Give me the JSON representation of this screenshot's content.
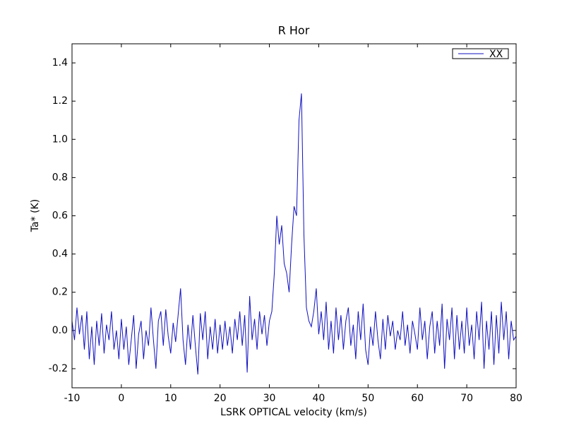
{
  "chart_data": {
    "type": "line",
    "title": "R Hor",
    "xlabel": "LSRK OPTICAL velocity (km/s)",
    "ylabel": "Ta* (K)",
    "x": [
      -10,
      -9.5,
      -9,
      -8.5,
      -8,
      -7.5,
      -7,
      -6.5,
      -6,
      -5.5,
      -5,
      -4.5,
      -4,
      -3.5,
      -3,
      -2.5,
      -2,
      -1.5,
      -1,
      -0.5,
      0,
      0.5,
      1,
      1.5,
      2,
      2.5,
      3,
      3.5,
      4,
      4.5,
      5,
      5.5,
      6,
      6.5,
      7,
      7.5,
      8,
      8.5,
      9,
      9.5,
      10,
      10.5,
      11,
      11.5,
      12,
      12.5,
      13,
      13.5,
      14,
      14.5,
      15,
      15.5,
      16,
      16.5,
      17,
      17.5,
      18,
      18.5,
      19,
      19.5,
      20,
      20.5,
      21,
      21.5,
      22,
      22.5,
      23,
      23.5,
      24,
      24.5,
      25,
      25.5,
      26,
      26.5,
      27,
      27.5,
      28,
      28.5,
      29,
      29.5,
      30,
      30.5,
      31,
      31.5,
      32,
      32.5,
      33,
      33.5,
      34,
      34.5,
      35,
      35.5,
      36,
      36.5,
      37,
      37.5,
      38,
      38.5,
      39,
      39.5,
      40,
      40.5,
      41,
      41.5,
      42,
      42.5,
      43,
      43.5,
      44,
      44.5,
      45,
      45.5,
      46,
      46.5,
      47,
      47.5,
      48,
      48.5,
      49,
      49.5,
      50,
      50.5,
      51,
      51.5,
      52,
      52.5,
      53,
      53.5,
      54,
      54.5,
      55,
      55.5,
      56,
      56.5,
      57,
      57.5,
      58,
      58.5,
      59,
      59.5,
      60,
      60.5,
      61,
      61.5,
      62,
      62.5,
      63,
      63.5,
      64,
      64.5,
      65,
      65.5,
      66,
      66.5,
      67,
      67.5,
      68,
      68.5,
      69,
      69.5,
      70,
      70.5,
      71,
      71.5,
      72,
      72.5,
      73,
      73.5,
      74,
      74.5,
      75,
      75.5,
      76,
      76.5,
      77,
      77.5,
      78,
      78.5,
      79,
      79.5,
      80
    ],
    "series": [
      {
        "name": "XX",
        "color": "#1010c0",
        "values": [
          0.05,
          -0.05,
          0.12,
          -0.02,
          0.08,
          -0.1,
          0.1,
          -0.15,
          0.02,
          -0.18,
          0.05,
          -0.08,
          0.09,
          -0.12,
          0.03,
          -0.05,
          0.1,
          -0.1,
          0.0,
          -0.15,
          0.06,
          -0.1,
          0.02,
          -0.18,
          -0.05,
          0.08,
          -0.2,
          -0.02,
          0.05,
          -0.15,
          0.0,
          -0.08,
          0.12,
          -0.05,
          -0.2,
          0.05,
          0.1,
          -0.08,
          0.11,
          -0.03,
          -0.12,
          0.04,
          -0.06,
          0.08,
          0.22,
          -0.05,
          -0.18,
          0.03,
          -0.1,
          0.08,
          -0.08,
          -0.23,
          0.09,
          -0.05,
          0.1,
          -0.15,
          0.02,
          -0.1,
          0.06,
          -0.12,
          0.03,
          -0.1,
          0.05,
          -0.08,
          0.02,
          -0.12,
          0.06,
          -0.05,
          0.1,
          -0.08,
          0.08,
          -0.22,
          0.18,
          -0.05,
          0.06,
          -0.1,
          0.1,
          -0.02,
          0.08,
          -0.08,
          0.05,
          0.1,
          0.3,
          0.6,
          0.45,
          0.55,
          0.35,
          0.3,
          0.2,
          0.45,
          0.65,
          0.6,
          1.1,
          1.24,
          0.5,
          0.12,
          0.05,
          0.02,
          0.1,
          0.22,
          -0.02,
          0.1,
          -0.05,
          0.15,
          -0.1,
          0.05,
          -0.12,
          0.12,
          -0.05,
          0.08,
          -0.1,
          0.05,
          0.12,
          -0.08,
          0.03,
          -0.15,
          0.1,
          -0.05,
          0.14,
          -0.1,
          -0.18,
          0.02,
          -0.08,
          0.1,
          -0.05,
          -0.15,
          0.06,
          -0.1,
          0.08,
          -0.03,
          0.05,
          -0.1,
          0.0,
          -0.05,
          0.1,
          -0.08,
          0.03,
          -0.12,
          0.05,
          -0.02,
          -0.1,
          0.12,
          -0.05,
          0.05,
          -0.15,
          0.02,
          0.1,
          -0.12,
          0.05,
          -0.08,
          0.14,
          -0.2,
          0.06,
          -0.05,
          0.12,
          -0.15,
          0.08,
          -0.1,
          0.05,
          -0.12,
          0.12,
          -0.08,
          0.03,
          -0.15,
          0.1,
          -0.05,
          0.15,
          -0.2,
          0.05,
          -0.1,
          0.1,
          -0.18,
          0.08,
          -0.12,
          0.15,
          -0.05,
          0.1,
          -0.15,
          0.05,
          -0.05,
          -0.03
        ]
      }
    ],
    "xlim": [
      -10,
      80
    ],
    "xticks": [
      -10,
      0,
      10,
      20,
      30,
      40,
      50,
      60,
      70,
      80
    ],
    "ylim": [
      -0.3,
      1.5
    ],
    "yticks": [
      -0.2,
      {
        "value": 0,
        "label": "0.0"
      },
      0.2,
      0.4,
      0.6,
      0.8,
      {
        "value": 1,
        "label": "1.0"
      },
      1.2,
      1.4
    ],
    "legend": "upper right"
  }
}
